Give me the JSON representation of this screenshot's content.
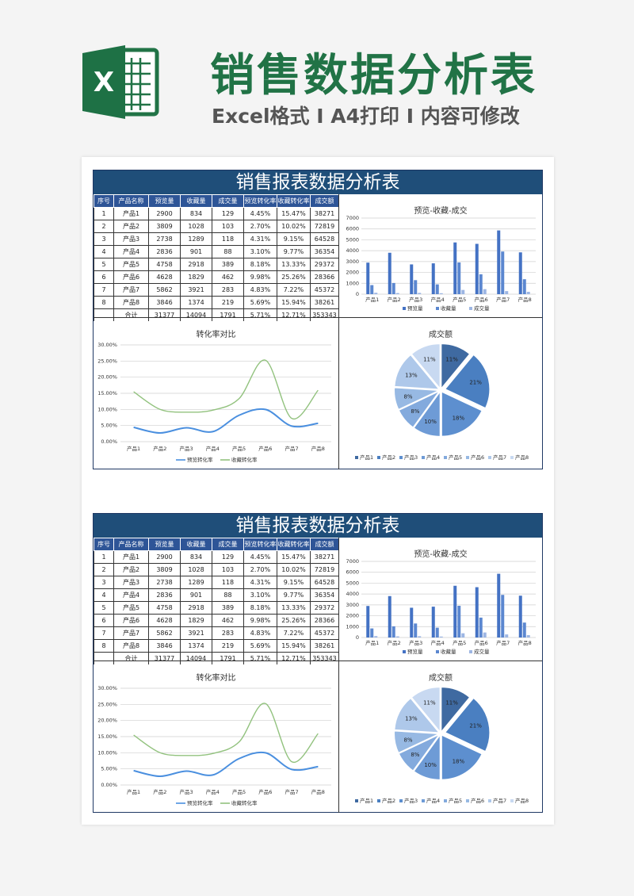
{
  "header": {
    "logo_text": "X",
    "main_title": "销售数据分析表",
    "subtitle": "Excel格式 I A4打印 I 内容可修改"
  },
  "sheet": {
    "title": "销售报表数据分析表",
    "columns": [
      "序号",
      "产品名称",
      "预览量",
      "收藏量",
      "成交量",
      "预览转化率",
      "收藏转化率",
      "成交额"
    ],
    "rows": [
      [
        "1",
        "产品1",
        "2900",
        "834",
        "129",
        "4.45%",
        "15.47%",
        "38271"
      ],
      [
        "2",
        "产品2",
        "3809",
        "1028",
        "103",
        "2.70%",
        "10.02%",
        "72819"
      ],
      [
        "3",
        "产品3",
        "2738",
        "1289",
        "118",
        "4.31%",
        "9.15%",
        "64528"
      ],
      [
        "4",
        "产品4",
        "2836",
        "901",
        "88",
        "3.10%",
        "9.77%",
        "36354"
      ],
      [
        "5",
        "产品5",
        "4758",
        "2918",
        "389",
        "8.18%",
        "13.33%",
        "29372"
      ],
      [
        "6",
        "产品6",
        "4628",
        "1829",
        "462",
        "9.98%",
        "25.26%",
        "28366"
      ],
      [
        "7",
        "产品7",
        "5862",
        "3921",
        "283",
        "4.83%",
        "7.22%",
        "45372"
      ],
      [
        "8",
        "产品8",
        "3846",
        "1374",
        "219",
        "5.69%",
        "15.94%",
        "38261"
      ]
    ],
    "total": [
      "",
      "合计",
      "31377",
      "14094",
      "1791",
      "5.71%",
      "12.71%",
      "353343"
    ]
  },
  "chart_data": [
    {
      "type": "bar",
      "title": "预览-收藏-成交",
      "categories": [
        "产品1",
        "产品2",
        "产品3",
        "产品4",
        "产品5",
        "产品6",
        "产品7",
        "产品8"
      ],
      "ylim": [
        0,
        7000
      ],
      "yticks": [
        "0",
        "1000",
        "2000",
        "3000",
        "4000",
        "5000",
        "6000",
        "7000"
      ],
      "series": [
        {
          "name": "预览量",
          "color": "#4472c4",
          "values": [
            2900,
            3809,
            2738,
            2836,
            4758,
            4628,
            5862,
            3846
          ]
        },
        {
          "name": "收藏量",
          "color": "#5b87d0",
          "values": [
            834,
            1028,
            1289,
            901,
            2918,
            1829,
            3921,
            1374
          ]
        },
        {
          "name": "成交量",
          "color": "#9db6e3",
          "values": [
            129,
            103,
            118,
            88,
            389,
            462,
            283,
            219
          ]
        }
      ],
      "grid": true,
      "legend": "bottom"
    },
    {
      "type": "line",
      "title": "转化率对比",
      "categories": [
        "产品1",
        "产品2",
        "产品3",
        "产品4",
        "产品5",
        "产品6",
        "产品7",
        "产品8"
      ],
      "ylim": [
        0,
        30
      ],
      "yticks": [
        "0.00%",
        "5.00%",
        "10.00%",
        "15.00%",
        "20.00%",
        "25.00%",
        "30.00%"
      ],
      "series": [
        {
          "name": "预览转化率",
          "color": "#4a8fdf",
          "values": [
            4.45,
            2.7,
            4.31,
            3.1,
            8.18,
            9.98,
            4.83,
            5.69
          ]
        },
        {
          "name": "收藏转化率",
          "color": "#92c27e",
          "values": [
            15.47,
            10.02,
            9.15,
            9.77,
            13.33,
            25.26,
            7.22,
            15.94
          ]
        }
      ],
      "grid": true,
      "legend": "bottom"
    },
    {
      "type": "pie",
      "title": "成交额",
      "labels": [
        "产品1",
        "产品2",
        "产品3",
        "产品4",
        "产品5",
        "产品6",
        "产品7",
        "产品8"
      ],
      "values": [
        11,
        21,
        18,
        10,
        8,
        8,
        13,
        11
      ],
      "value_labels": [
        "11%",
        "21%",
        "18%",
        "10%",
        "8%",
        "8%",
        "13%",
        "11%"
      ],
      "colors": [
        "#3f6aa1",
        "#4a7fc1",
        "#5d8fcf",
        "#6e9bd6",
        "#83aadd",
        "#97b9e3",
        "#aec8ea",
        "#c8d9f1"
      ],
      "legend": "bottom"
    }
  ]
}
